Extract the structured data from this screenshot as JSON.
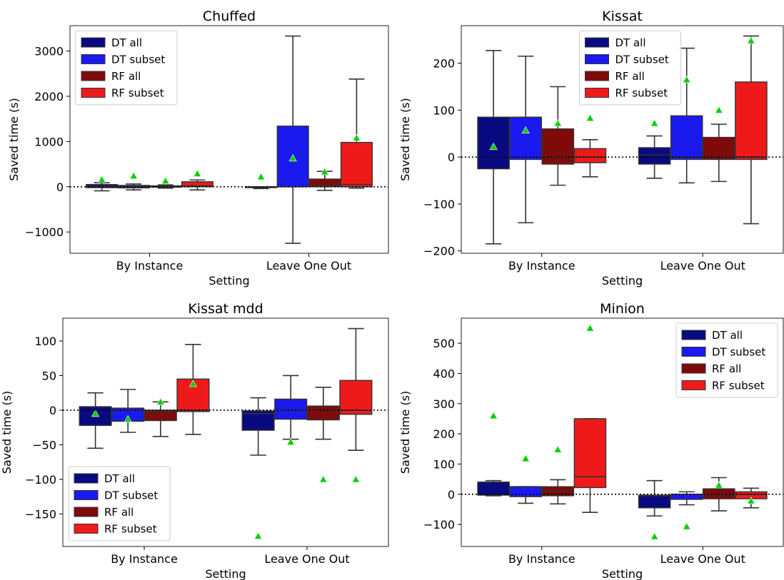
{
  "colors": {
    "DT all": "#0a0a80",
    "DT subset": "#1a1aee",
    "RF all": "#7f0a0a",
    "RF subset": "#ee1a1a",
    "mean_marker": "#00cc00",
    "box_edge": "#333333"
  },
  "chart_data": [
    {
      "type": "box",
      "title": "Chuffed",
      "xlabel": "Setting",
      "ylabel": "Saved time (s)",
      "categories": [
        "By Instance",
        "Leave One Out"
      ],
      "ylim": [
        -1470,
        3560
      ],
      "yticks": [
        -1000,
        0,
        1000,
        2000,
        3000
      ],
      "ytick_labels": [
        "−1000",
        "0",
        "1000",
        "2000",
        "3000"
      ],
      "legend": {
        "position": "upper-left",
        "entries": [
          "DT all",
          "DT subset",
          "RF all",
          "RF subset"
        ]
      },
      "series": [
        {
          "name": "DT all",
          "boxes": [
            {
              "whislo": -90,
              "q1": -20,
              "med": 10,
              "q3": 50,
              "whishi": 90,
              "mean": 160
            },
            {
              "whislo": -40,
              "q1": -20,
              "med": -5,
              "q3": 0,
              "whishi": 0,
              "mean": 220
            }
          ]
        },
        {
          "name": "DT subset",
          "boxes": [
            {
              "whislo": -70,
              "q1": -25,
              "med": 0,
              "q3": 30,
              "whishi": 60,
              "mean": 240
            },
            {
              "whislo": -1250,
              "q1": 0,
              "med": 0,
              "q3": 1340,
              "whishi": 3330,
              "mean": 630
            }
          ]
        },
        {
          "name": "RF all",
          "boxes": [
            {
              "whislo": -30,
              "q1": -10,
              "med": 0,
              "q3": 20,
              "whishi": 40,
              "mean": 130
            },
            {
              "whislo": -80,
              "q1": 0,
              "med": 20,
              "q3": 170,
              "whishi": 340,
              "mean": 330
            }
          ]
        },
        {
          "name": "RF subset",
          "boxes": [
            {
              "whislo": -70,
              "q1": 0,
              "med": 20,
              "q3": 110,
              "whishi": 150,
              "mean": 290
            },
            {
              "whislo": -30,
              "q1": 0,
              "med": 50,
              "q3": 980,
              "whishi": 2380,
              "mean": 1080
            }
          ]
        }
      ]
    },
    {
      "type": "box",
      "title": "Kissat",
      "xlabel": "Setting",
      "ylabel": "Saved time (s)",
      "categories": [
        "By Instance",
        "Leave One Out"
      ],
      "ylim": [
        -205,
        280
      ],
      "yticks": [
        -200,
        -100,
        0,
        100,
        200
      ],
      "ytick_labels": [
        "−200",
        "−100",
        "0",
        "100",
        "200"
      ],
      "legend": {
        "position": "upper-center",
        "entries": [
          "DT all",
          "DT subset",
          "RF all",
          "RF subset"
        ]
      },
      "series": [
        {
          "name": "DT all",
          "boxes": [
            {
              "whislo": -185,
              "q1": -25,
              "med": 85,
              "q3": 85,
              "whishi": 227,
              "mean": 22
            },
            {
              "whislo": -45,
              "q1": -15,
              "med": 5,
              "q3": 20,
              "whishi": 45,
              "mean": 72
            }
          ]
        },
        {
          "name": "DT subset",
          "boxes": [
            {
              "whislo": -140,
              "q1": -5,
              "med": 85,
              "q3": 85,
              "whishi": 215,
              "mean": 57
            },
            {
              "whislo": -55,
              "q1": -5,
              "med": 0,
              "q3": 88,
              "whishi": 232,
              "mean": 165
            }
          ]
        },
        {
          "name": "RF all",
          "boxes": [
            {
              "whislo": -60,
              "q1": -15,
              "med": 0,
              "q3": 60,
              "whishi": 150,
              "mean": 72
            },
            {
              "whislo": -52,
              "q1": -5,
              "med": 0,
              "q3": 42,
              "whishi": 70,
              "mean": 100
            }
          ]
        },
        {
          "name": "RF subset",
          "boxes": [
            {
              "whislo": -42,
              "q1": -12,
              "med": 0,
              "q3": 18,
              "whishi": 37,
              "mean": 83
            },
            {
              "whislo": -142,
              "q1": -5,
              "med": 0,
              "q3": 160,
              "whishi": 258,
              "mean": 248
            }
          ]
        }
      ]
    },
    {
      "type": "box",
      "title": "Kissat mdd",
      "xlabel": "Setting",
      "ylabel": "Saved time (s)",
      "categories": [
        "By Instance",
        "Leave One Out"
      ],
      "ylim": [
        -197,
        133
      ],
      "yticks": [
        -150,
        -100,
        -50,
        0,
        50,
        100
      ],
      "ytick_labels": [
        "−150",
        "−100",
        "−50",
        "0",
        "50",
        "100"
      ],
      "legend": {
        "position": "lower-left",
        "entries": [
          "DT all",
          "DT subset",
          "RF all",
          "RF subset"
        ]
      },
      "series": [
        {
          "name": "DT all",
          "boxes": [
            {
              "whislo": -55,
              "q1": -22,
              "med": 5,
              "q3": 5,
              "whishi": 25,
              "mean": -5
            },
            {
              "whislo": -65,
              "q1": -29,
              "med": -5,
              "q3": -1,
              "whishi": 18,
              "mean": -182
            }
          ]
        },
        {
          "name": "DT subset",
          "boxes": [
            {
              "whislo": -32,
              "q1": -16,
              "med": 0,
              "q3": 3,
              "whishi": 30,
              "mean": -13
            },
            {
              "whislo": -42,
              "q1": -13,
              "med": 0,
              "q3": 16,
              "whishi": 50,
              "mean": -46
            }
          ]
        },
        {
          "name": "RF all",
          "boxes": [
            {
              "whislo": -38,
              "q1": -15,
              "med": -2,
              "q3": 0,
              "whishi": 12,
              "mean": 12
            },
            {
              "whislo": -42,
              "q1": -14,
              "med": 0,
              "q3": 6,
              "whishi": 33,
              "mean": -100
            }
          ]
        },
        {
          "name": "RF subset",
          "boxes": [
            {
              "whislo": -35,
              "q1": -2,
              "med": 0,
              "q3": 45,
              "whishi": 95,
              "mean": 38
            },
            {
              "whislo": -58,
              "q1": -6,
              "med": 0,
              "q3": 43,
              "whishi": 118,
              "mean": -100
            }
          ]
        }
      ]
    },
    {
      "type": "box",
      "title": "Minion",
      "xlabel": "Setting",
      "ylabel": "Saved time (s)",
      "categories": [
        "By Instance",
        "Leave One Out"
      ],
      "ylim": [
        -173,
        583
      ],
      "yticks": [
        -100,
        0,
        100,
        200,
        300,
        400,
        500
      ],
      "ytick_labels": [
        "−100",
        "0",
        "100",
        "200",
        "300",
        "400",
        "500"
      ],
      "legend": {
        "position": "upper-right",
        "entries": [
          "DT all",
          "DT subset",
          "RF all",
          "RF subset"
        ]
      },
      "series": [
        {
          "name": "DT all",
          "boxes": [
            {
              "whislo": -5,
              "q1": -3,
              "med": 40,
              "q3": 40,
              "whishi": 45,
              "mean": 260
            },
            {
              "whislo": -72,
              "q1": -45,
              "med": -5,
              "q3": -3,
              "whishi": 45,
              "mean": -140
            }
          ]
        },
        {
          "name": "DT subset",
          "boxes": [
            {
              "whislo": -30,
              "q1": -8,
              "med": 25,
              "q3": 25,
              "whishi": 25,
              "mean": 118
            },
            {
              "whislo": -35,
              "q1": -17,
              "med": 0,
              "q3": 0,
              "whishi": 8,
              "mean": -107
            }
          ]
        },
        {
          "name": "RF all",
          "boxes": [
            {
              "whislo": -32,
              "q1": -5,
              "med": 10,
              "q3": 25,
              "whishi": 48,
              "mean": 148
            },
            {
              "whislo": -55,
              "q1": -15,
              "med": 0,
              "q3": 18,
              "whishi": 55,
              "mean": 30
            }
          ]
        },
        {
          "name": "RF subset",
          "boxes": [
            {
              "whislo": -60,
              "q1": 22,
              "med": 58,
              "q3": 250,
              "whishi": 250,
              "mean": 550
            },
            {
              "whislo": -45,
              "q1": -15,
              "med": 0,
              "q3": 8,
              "whishi": 20,
              "mean": -22
            }
          ]
        }
      ]
    }
  ]
}
